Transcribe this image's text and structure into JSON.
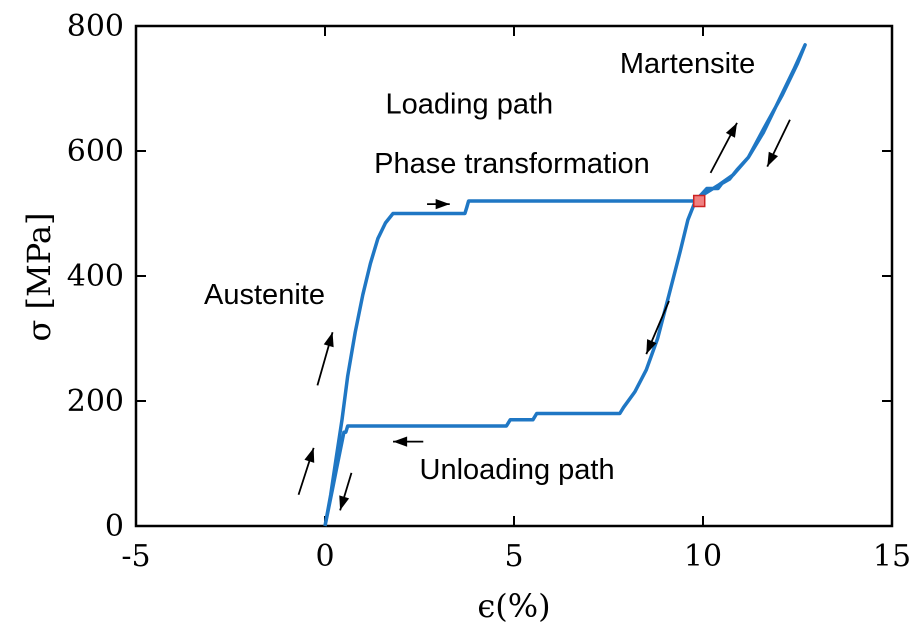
{
  "chart_data": {
    "type": "line",
    "title": "",
    "xlabel": "ϵ(%)",
    "ylabel": "σ [MPa]",
    "xlim": [
      -5,
      15
    ],
    "ylim": [
      0,
      800
    ],
    "xticks": [
      -5,
      0,
      5,
      10,
      15
    ],
    "yticks": [
      0,
      200,
      400,
      600,
      800
    ],
    "xtick_labels": [
      "-5",
      "0",
      "5",
      "10",
      "15"
    ],
    "ytick_labels": [
      "0",
      "200",
      "400",
      "600",
      "800"
    ],
    "grid": false,
    "legend": "none",
    "line_color": "#1f77c4",
    "marker_color": "#f08080",
    "series": [
      {
        "x": [
          0,
          0.15,
          0.3,
          0.45,
          0.6,
          0.8,
          1.0,
          1.2,
          1.4,
          1.6,
          1.8,
          1.85,
          2.5,
          3.7,
          3.75,
          3.8,
          5.0,
          7.0,
          9.0,
          9.8,
          10.1,
          10.4,
          10.5,
          10.7,
          10.9,
          11.2,
          11.6,
          12.0,
          12.4,
          12.7,
          12.5,
          12.1,
          11.6,
          11.2,
          10.8,
          10.4,
          10.0,
          9.8,
          9.6,
          9.4,
          9.1,
          8.8,
          8.5,
          8.2,
          7.9,
          7.8,
          5.6,
          5.5,
          4.9,
          4.8,
          3.0,
          1.5,
          0.6,
          0.55,
          0.5,
          0.4,
          0.3,
          0.2,
          0.1,
          0
        ],
        "y": [
          0,
          50,
          110,
          170,
          240,
          310,
          370,
          420,
          460,
          485,
          500,
          500,
          500,
          500,
          510,
          520,
          520,
          520,
          520,
          520,
          540,
          540,
          548,
          555,
          570,
          590,
          630,
          680,
          730,
          770,
          740,
          690,
          635,
          590,
          562,
          545,
          530,
          520,
          490,
          440,
          370,
          300,
          250,
          215,
          190,
          180,
          180,
          170,
          170,
          160,
          160,
          160,
          160,
          150,
          150,
          120,
          90,
          60,
          30,
          0
        ]
      }
    ],
    "marker_point": {
      "x": 9.9,
      "y": 520
    },
    "arrows": [
      {
        "from": [
          -0.7,
          50
        ],
        "to": [
          -0.3,
          125
        ]
      },
      {
        "from": [
          -0.2,
          225
        ],
        "to": [
          0.2,
          310
        ]
      },
      {
        "from": [
          2.7,
          515
        ],
        "to": [
          3.3,
          515
        ]
      },
      {
        "from": [
          10.2,
          565
        ],
        "to": [
          10.9,
          645
        ]
      },
      {
        "from": [
          12.3,
          650
        ],
        "to": [
          11.7,
          575
        ]
      },
      {
        "from": [
          9.1,
          360
        ],
        "to": [
          8.5,
          275
        ]
      },
      {
        "from": [
          2.6,
          135
        ],
        "to": [
          1.8,
          135
        ]
      },
      {
        "from": [
          0.7,
          85
        ],
        "to": [
          0.4,
          25
        ]
      }
    ],
    "annotations": [
      {
        "text": "Loading path",
        "x": 1.6,
        "y": 660
      },
      {
        "text": "Phase transformation",
        "x": 1.3,
        "y": 565
      },
      {
        "text": "Martensite",
        "x": 7.8,
        "y": 725
      },
      {
        "text": "Austenite",
        "x": -3.2,
        "y": 355
      },
      {
        "text": "Unloading path",
        "x": 2.5,
        "y": 75
      }
    ]
  }
}
